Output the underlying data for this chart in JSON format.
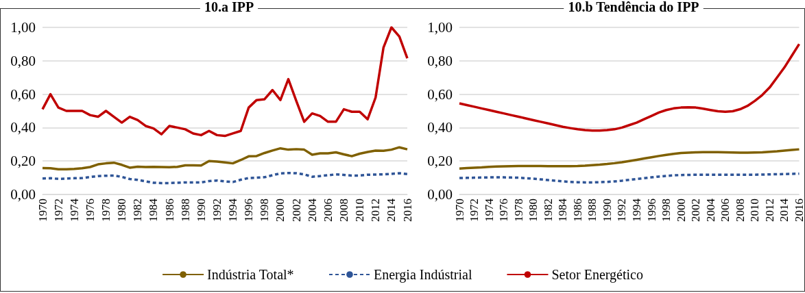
{
  "chart_data": [
    {
      "type": "line",
      "title": "10.a IPP",
      "categories": [
        "1970",
        null,
        "1972",
        null,
        "1974",
        null,
        "1976",
        null,
        "1978",
        null,
        "1980",
        null,
        "1982",
        null,
        "1984",
        null,
        "1986",
        null,
        "1988",
        null,
        "1990",
        null,
        "1992",
        null,
        "1994",
        null,
        "1996",
        null,
        "1998",
        null,
        "2000",
        null,
        "2002",
        null,
        "2004",
        null,
        "2006",
        null,
        "2008",
        null,
        "2010",
        null,
        "2012",
        null,
        "2014",
        null,
        "2016"
      ],
      "series": [
        {
          "name": "Indústria Total*",
          "color": "#7f6000",
          "line_style": "solid",
          "values": [
            0.158,
            0.157,
            0.151,
            0.151,
            0.153,
            0.157,
            0.164,
            0.18,
            0.186,
            0.19,
            0.177,
            0.16,
            0.166,
            0.164,
            0.165,
            0.164,
            0.163,
            0.165,
            0.174,
            0.174,
            0.173,
            0.2,
            0.197,
            0.192,
            0.186,
            0.206,
            0.228,
            0.23,
            0.248,
            0.263,
            0.276,
            0.268,
            0.271,
            0.268,
            0.238,
            0.246,
            0.246,
            0.252,
            0.24,
            0.229,
            0.244,
            0.254,
            0.262,
            0.261,
            0.268,
            0.282,
            0.27
          ]
        },
        {
          "name": "Energia Indústrial",
          "color": "#2f5597",
          "line_style": "dashed",
          "values": [
            0.095,
            0.097,
            0.093,
            0.095,
            0.097,
            0.098,
            0.104,
            0.11,
            0.112,
            0.113,
            0.105,
            0.092,
            0.087,
            0.078,
            0.07,
            0.068,
            0.068,
            0.07,
            0.072,
            0.072,
            0.072,
            0.08,
            0.083,
            0.078,
            0.074,
            0.088,
            0.098,
            0.1,
            0.103,
            0.115,
            0.126,
            0.128,
            0.127,
            0.12,
            0.106,
            0.11,
            0.115,
            0.12,
            0.117,
            0.113,
            0.113,
            0.118,
            0.119,
            0.12,
            0.123,
            0.127,
            0.122
          ]
        },
        {
          "name": "Setor Energético",
          "color": "#c00000",
          "line_style": "solid",
          "values": [
            0.51,
            0.6,
            0.52,
            0.5,
            0.5,
            0.5,
            0.475,
            0.465,
            0.5,
            0.465,
            0.43,
            0.465,
            0.445,
            0.41,
            0.395,
            0.36,
            0.41,
            0.4,
            0.39,
            0.365,
            0.355,
            0.38,
            0.355,
            0.35,
            0.365,
            0.38,
            0.52,
            0.565,
            0.57,
            0.625,
            0.565,
            0.69,
            0.56,
            0.435,
            0.485,
            0.47,
            0.435,
            0.435,
            0.51,
            0.495,
            0.495,
            0.45,
            0.58,
            0.88,
            1.0,
            0.945,
            0.815
          ]
        }
      ],
      "ylim": [
        0,
        1
      ],
      "yticks": [
        {
          "value": 0,
          "label": "0,00"
        },
        {
          "value": 0.2,
          "label": "0,20"
        },
        {
          "value": 0.4,
          "label": "0,40"
        },
        {
          "value": 0.6,
          "label": "0,60"
        },
        {
          "value": 0.8,
          "label": "0,80"
        },
        {
          "value": 1,
          "label": "1,00"
        }
      ],
      "grid": "y",
      "legend": "bottom",
      "marker": "none"
    },
    {
      "type": "line",
      "title": "10.b Tendência do IPP",
      "categories": [
        "1970",
        null,
        "1972",
        null,
        "1974",
        null,
        "1976",
        null,
        "1978",
        null,
        "1980",
        null,
        "1982",
        null,
        "1984",
        null,
        "1986",
        null,
        "1988",
        null,
        "1990",
        null,
        "1992",
        null,
        "1994",
        null,
        "1996",
        null,
        "1998",
        null,
        "2000",
        null,
        "2002",
        null,
        "2004",
        null,
        "2006",
        null,
        "2008",
        null,
        "2010",
        null,
        "2012",
        null,
        "2014",
        null,
        "2016"
      ],
      "series": [
        {
          "color": "#7f6000",
          "line_style": "solid",
          "values": [
            0.155,
            0.158,
            0.16,
            0.162,
            0.165,
            0.167,
            0.168,
            0.169,
            0.17,
            0.17,
            0.17,
            0.17,
            0.169,
            0.169,
            0.169,
            0.169,
            0.17,
            0.172,
            0.175,
            0.178,
            0.182,
            0.187,
            0.193,
            0.2,
            0.207,
            0.215,
            0.222,
            0.23,
            0.237,
            0.243,
            0.248,
            0.25,
            0.252,
            0.253,
            0.253,
            0.253,
            0.252,
            0.251,
            0.25,
            0.25,
            0.251,
            0.252,
            0.255,
            0.258,
            0.262,
            0.266,
            0.27
          ]
        },
        {
          "color": "#2f5597",
          "line_style": "dashed",
          "values": [
            0.098,
            0.099,
            0.1,
            0.101,
            0.102,
            0.102,
            0.102,
            0.101,
            0.1,
            0.097,
            0.094,
            0.09,
            0.086,
            0.082,
            0.078,
            0.075,
            0.073,
            0.072,
            0.072,
            0.073,
            0.075,
            0.078,
            0.082,
            0.087,
            0.092,
            0.097,
            0.102,
            0.107,
            0.111,
            0.114,
            0.116,
            0.117,
            0.118,
            0.118,
            0.118,
            0.118,
            0.118,
            0.118,
            0.118,
            0.118,
            0.118,
            0.119,
            0.12,
            0.121,
            0.122,
            0.123,
            0.124
          ]
        },
        {
          "color": "#c00000",
          "line_style": "solid",
          "values": [
            0.545,
            0.535,
            0.525,
            0.515,
            0.505,
            0.495,
            0.485,
            0.475,
            0.465,
            0.455,
            0.445,
            0.435,
            0.425,
            0.415,
            0.405,
            0.397,
            0.39,
            0.385,
            0.382,
            0.382,
            0.385,
            0.39,
            0.4,
            0.415,
            0.43,
            0.45,
            0.47,
            0.49,
            0.505,
            0.515,
            0.52,
            0.522,
            0.52,
            0.513,
            0.505,
            0.498,
            0.495,
            0.498,
            0.51,
            0.53,
            0.56,
            0.595,
            0.64,
            0.7,
            0.76,
            0.83,
            0.9
          ]
        }
      ],
      "ylim": [
        0,
        1
      ],
      "yticks": [
        {
          "value": 0,
          "label": "0,00"
        },
        {
          "value": 0.2,
          "label": "0,20"
        },
        {
          "value": 0.4,
          "label": "0,40"
        },
        {
          "value": 0.6,
          "label": "0,60"
        },
        {
          "value": 0.8,
          "label": "0,80"
        },
        {
          "value": 1,
          "label": "1,00"
        }
      ],
      "grid": "y",
      "marker": "none"
    }
  ]
}
